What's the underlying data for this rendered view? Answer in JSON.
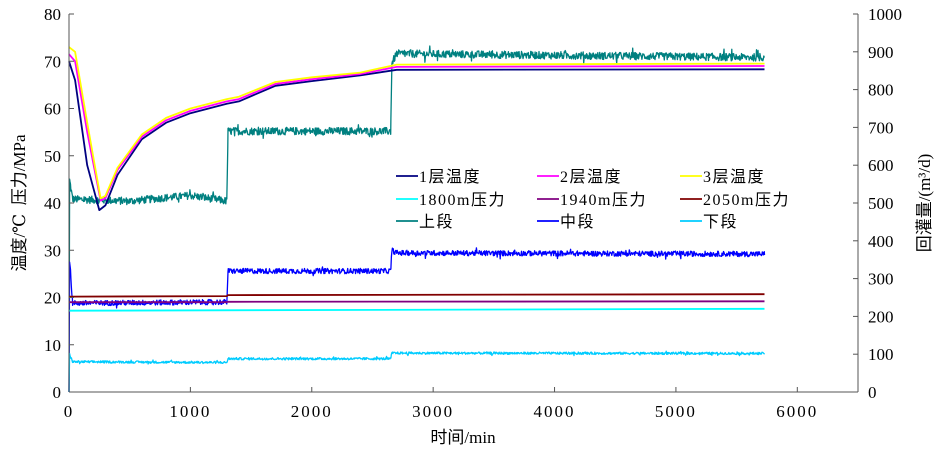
{
  "chart_data": {
    "type": "line",
    "xlabel": "时间/min",
    "ylabel_left": "温度/℃  压力/MPa",
    "ylabel_right": "回灌量/(m³/d)",
    "xlim": [
      0,
      6500
    ],
    "ylim_left": [
      0,
      80
    ],
    "ylim_right": [
      0,
      1000
    ],
    "x_ticks": [
      "0",
      "1000",
      "2000",
      "3000",
      "4000",
      "5000",
      "6000"
    ],
    "x_tick_values": [
      0,
      1000,
      2000,
      3000,
      4000,
      5000,
      6000
    ],
    "y_left_ticks": [
      "0",
      "10",
      "20",
      "30",
      "40",
      "50",
      "60",
      "70",
      "80"
    ],
    "y_left_tick_values": [
      0,
      10,
      20,
      30,
      40,
      50,
      60,
      70,
      80
    ],
    "y_right_ticks": [
      "0",
      "100",
      "200",
      "300",
      "400",
      "500",
      "600",
      "700",
      "800",
      "900",
      "1000"
    ],
    "y_right_tick_values": [
      0,
      100,
      200,
      300,
      400,
      500,
      600,
      700,
      800,
      900,
      1000
    ],
    "grid": false,
    "legend_position": "center-right",
    "series": [
      {
        "name": "1层温度",
        "color": "#000080",
        "axis": "left",
        "noise": 0,
        "x": [
          0,
          50,
          150,
          250,
          300,
          400,
          600,
          800,
          1000,
          1300,
          1400,
          1700,
          2000,
          2400,
          2700,
          5730
        ],
        "y": [
          70,
          66,
          48,
          38.5,
          39.5,
          46,
          53.5,
          57,
          59,
          61,
          61.5,
          64.8,
          65.8,
          67,
          68.2,
          68.3
        ]
      },
      {
        "name": "2层温度",
        "color": "#ff00ff",
        "axis": "left",
        "noise": 0,
        "x": [
          0,
          50,
          150,
          260,
          300,
          400,
          600,
          800,
          1000,
          1300,
          1400,
          1700,
          2000,
          2400,
          2700,
          5730
        ],
        "y": [
          71.5,
          70,
          55,
          40.5,
          41,
          47,
          54,
          57.5,
          59.5,
          61.5,
          62,
          65.2,
          66.2,
          67.3,
          68.8,
          69
        ]
      },
      {
        "name": "3层温度",
        "color": "#ffff00",
        "axis": "left",
        "noise": 0,
        "x": [
          0,
          50,
          150,
          260,
          300,
          400,
          600,
          800,
          1000,
          1300,
          1400,
          1700,
          2000,
          2400,
          2700,
          5730
        ],
        "y": [
          73,
          72,
          57,
          41,
          41.5,
          47.5,
          54.5,
          58,
          60,
          62,
          62.5,
          65.6,
          66.6,
          67.6,
          69.3,
          69.5
        ]
      },
      {
        "name": "1800m压力",
        "color": "#00ffff",
        "axis": "left",
        "noise": 0,
        "x": [
          0,
          5730
        ],
        "y": [
          17.2,
          17.6
        ]
      },
      {
        "name": "1940m压力",
        "color": "#800080",
        "axis": "left",
        "noise": 0,
        "x": [
          0,
          1300,
          1310,
          5730
        ],
        "y": [
          19.0,
          19.0,
          19.1,
          19.2
        ]
      },
      {
        "name": "2050m压力",
        "color": "#800000",
        "axis": "left",
        "noise": 0,
        "x": [
          0,
          1300,
          1310,
          5730
        ],
        "y": [
          20.2,
          20.3,
          20.5,
          20.7
        ]
      },
      {
        "name": "上段",
        "color": "#008080",
        "axis": "right",
        "noise": 10,
        "x": [
          0,
          5,
          30,
          500,
          1000,
          1300,
          1310,
          2650,
          2660,
          2700,
          5730
        ],
        "y": [
          0,
          560,
          510,
          505,
          520,
          505,
          690,
          690,
          870,
          895,
          885
        ]
      },
      {
        "name": "中段",
        "color": "#0000ff",
        "axis": "right",
        "noise": 7,
        "x": [
          0,
          5,
          30,
          1300,
          1310,
          2650,
          2660,
          2700,
          5730
        ],
        "y": [
          0,
          350,
          235,
          238,
          320,
          320,
          375,
          368,
          365
        ]
      },
      {
        "name": "下段",
        "color": "#00ccff",
        "axis": "right",
        "noise": 3,
        "x": [
          0,
          5,
          30,
          1300,
          1310,
          2650,
          2660,
          5730
        ],
        "y": [
          0,
          100,
          80,
          78,
          88,
          88,
          103,
          102
        ]
      }
    ]
  }
}
